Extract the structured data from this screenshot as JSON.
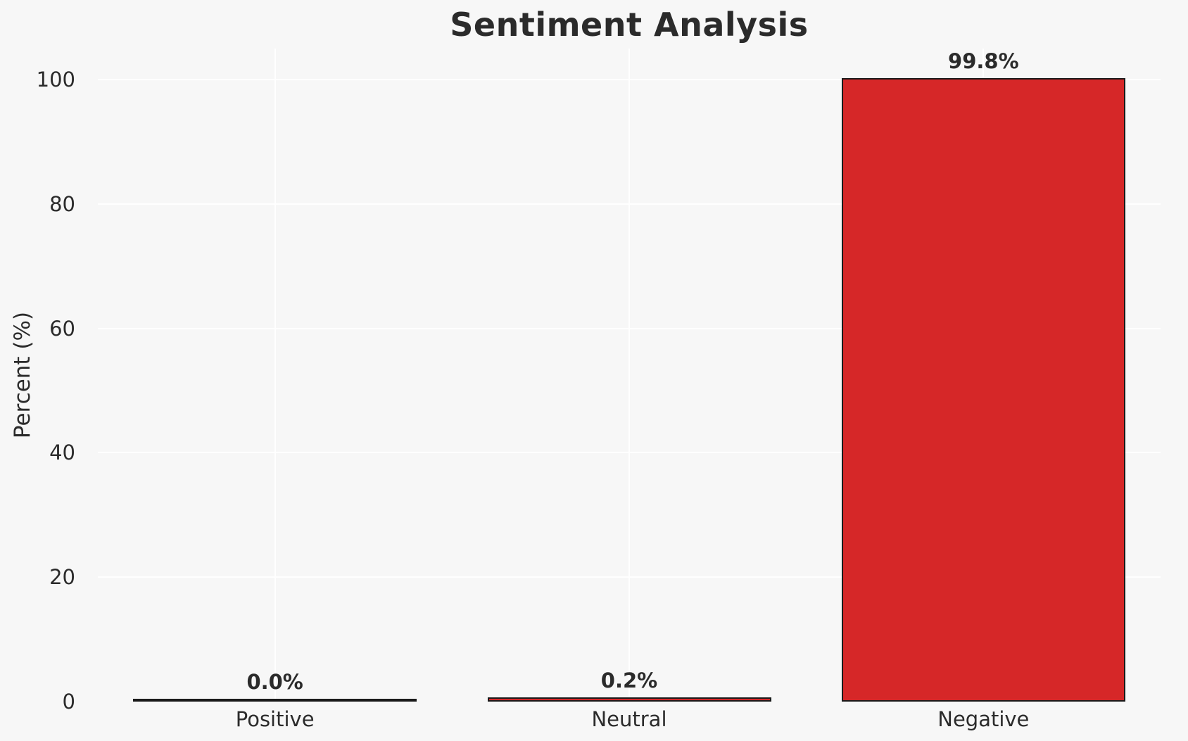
{
  "chart_data": {
    "type": "bar",
    "title": "Sentiment Analysis",
    "ylabel": "Percent (%)",
    "xlabel": "",
    "categories": [
      "Positive",
      "Neutral",
      "Negative"
    ],
    "values": [
      0.0,
      0.2,
      99.8
    ],
    "value_labels": [
      "0.0%",
      "0.2%",
      "99.8%"
    ],
    "yticks": [
      0,
      20,
      40,
      60,
      80,
      100
    ],
    "ylim": [
      0,
      105
    ],
    "grid": true,
    "legend": false,
    "bar_color": "#d62728",
    "bar_edge_color": "#1a1a1a",
    "background_color": "#f7f7f7",
    "grid_color": "#ffffff",
    "text_color": "#2b2b2b"
  }
}
